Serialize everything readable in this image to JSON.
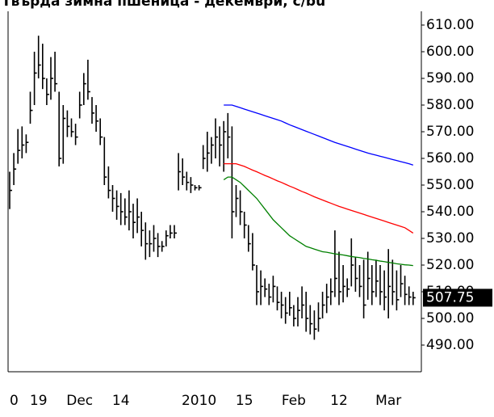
{
  "chart_data": {
    "type": "ohlc",
    "title": "Твърда зимна пшеница - декември, c/bu",
    "categories": [
      "0",
      null,
      null,
      null,
      null,
      null,
      null,
      "19",
      null,
      null,
      null,
      null,
      null,
      null,
      null,
      null,
      null,
      "Dec",
      null,
      null,
      null,
      null,
      null,
      null,
      null,
      null,
      null,
      "14",
      null,
      null,
      null,
      null,
      null,
      null,
      null,
      null,
      null,
      null,
      null,
      null,
      null,
      null,
      null,
      null,
      null,
      null,
      "2010",
      null,
      null,
      null,
      null,
      null,
      null,
      null,
      null,
      null,
      null,
      "15",
      null,
      null,
      null,
      null,
      null,
      null,
      null,
      null,
      null,
      null,
      null,
      "Feb",
      null,
      null,
      null,
      null,
      null,
      null,
      null,
      null,
      null,
      null,
      "12",
      null,
      null,
      null,
      null,
      null,
      null,
      null,
      null,
      null,
      null,
      null,
      "Mar",
      null,
      null,
      null,
      null,
      null,
      null
    ],
    "high": [
      555,
      562,
      571,
      572,
      569,
      585,
      600,
      606,
      603,
      590,
      598,
      600,
      585,
      580,
      578,
      575,
      573,
      585,
      592,
      597,
      583,
      580,
      575,
      568,
      557,
      550,
      548,
      547,
      545,
      548,
      543,
      545,
      540,
      536,
      533,
      535,
      532,
      529,
      533,
      535,
      535,
      562,
      560,
      555,
      553,
      550,
      550,
      565,
      570,
      568,
      575,
      572,
      574,
      577,
      572,
      550,
      548,
      540,
      535,
      532,
      520,
      518,
      515,
      513,
      516,
      512,
      510,
      508,
      510,
      505,
      508,
      512,
      510,
      505,
      503,
      506,
      510,
      513,
      515,
      533,
      525,
      520,
      515,
      530,
      523,
      520,
      522,
      525,
      520,
      522,
      520,
      518,
      526,
      522,
      518,
      520,
      516,
      512,
      510
    ],
    "low": [
      541,
      550,
      558,
      560,
      562,
      573,
      580,
      590,
      586,
      580,
      582,
      585,
      557,
      558,
      568,
      568,
      565,
      575,
      580,
      582,
      573,
      570,
      565,
      550,
      545,
      540,
      537,
      535,
      535,
      533,
      530,
      532,
      527,
      522,
      523,
      525,
      523,
      525,
      527,
      530,
      530,
      548,
      550,
      548,
      547,
      548,
      548,
      556,
      555,
      558,
      560,
      557,
      555,
      560,
      530,
      538,
      535,
      530,
      525,
      518,
      505,
      505,
      508,
      505,
      506,
      503,
      500,
      498,
      501,
      497,
      497,
      500,
      495,
      494,
      492,
      495,
      500,
      502,
      505,
      508,
      505,
      506,
      508,
      512,
      510,
      508,
      500,
      507,
      505,
      508,
      505,
      503,
      500,
      505,
      503,
      508,
      505,
      505,
      505
    ],
    "close": [
      548,
      556,
      563,
      565,
      566,
      578,
      592,
      595,
      590,
      584,
      590,
      588,
      560,
      575,
      572,
      570,
      568,
      580,
      588,
      585,
      577,
      574,
      568,
      553,
      548,
      545,
      542,
      540,
      538,
      540,
      536,
      538,
      533,
      528,
      528,
      530,
      527,
      527,
      531,
      532,
      532,
      555,
      553,
      551,
      550,
      549,
      549,
      560,
      562,
      565,
      568,
      565,
      570,
      568,
      540,
      545,
      540,
      535,
      528,
      520,
      510,
      512,
      511,
      508,
      512,
      506,
      505,
      502,
      504,
      500,
      503,
      505,
      500,
      498,
      496,
      500,
      505,
      508,
      510,
      515,
      510,
      512,
      511,
      520,
      515,
      512,
      505,
      515,
      510,
      514,
      510,
      508,
      512,
      510,
      507,
      513,
      509,
      508,
      507.75
    ],
    "color": "#000000",
    "last_value_label": "507.75",
    "moving_averages": [
      {
        "color": "#0000ff",
        "values": [
          null,
          null,
          null,
          null,
          null,
          null,
          null,
          null,
          null,
          null,
          null,
          null,
          null,
          null,
          null,
          null,
          null,
          null,
          null,
          null,
          null,
          null,
          null,
          null,
          null,
          null,
          null,
          null,
          null,
          null,
          null,
          null,
          null,
          null,
          null,
          null,
          null,
          null,
          null,
          null,
          null,
          null,
          null,
          null,
          null,
          null,
          null,
          null,
          null,
          null,
          null,
          null,
          580,
          580,
          580,
          579.5,
          579,
          578.5,
          578,
          577.5,
          577,
          576.5,
          576,
          575.5,
          575,
          574.5,
          574,
          573.3,
          572.6,
          572,
          571.4,
          570.8,
          570.2,
          569.6,
          569,
          568.4,
          567.8,
          567.2,
          566.6,
          566,
          565.5,
          565,
          564.5,
          564,
          563.5,
          563,
          562.5,
          562,
          561.6,
          561.2,
          560.8,
          560.4,
          560,
          559.6,
          559.2,
          558.8,
          558.4,
          558,
          557.5
        ]
      },
      {
        "color": "#ff0000",
        "values": [
          null,
          null,
          null,
          null,
          null,
          null,
          null,
          null,
          null,
          null,
          null,
          null,
          null,
          null,
          null,
          null,
          null,
          null,
          null,
          null,
          null,
          null,
          null,
          null,
          null,
          null,
          null,
          null,
          null,
          null,
          null,
          null,
          null,
          null,
          null,
          null,
          null,
          null,
          null,
          null,
          null,
          null,
          null,
          null,
          null,
          null,
          null,
          null,
          null,
          null,
          null,
          null,
          558,
          558,
          558,
          558,
          557.5,
          557,
          556.3,
          555.6,
          555,
          554.3,
          553.6,
          553,
          552.3,
          551.6,
          551,
          550.3,
          549.6,
          549,
          548.3,
          547.6,
          547,
          546.3,
          545.6,
          545,
          544.4,
          543.8,
          543.2,
          542.6,
          542,
          541.5,
          541,
          540.5,
          540,
          539.5,
          539,
          538.5,
          538,
          537.5,
          537,
          536.5,
          536,
          535.5,
          535,
          534.5,
          534,
          533,
          532
        ]
      },
      {
        "color": "#008000",
        "values": [
          null,
          null,
          null,
          null,
          null,
          null,
          null,
          null,
          null,
          null,
          null,
          null,
          null,
          null,
          null,
          null,
          null,
          null,
          null,
          null,
          null,
          null,
          null,
          null,
          null,
          null,
          null,
          null,
          null,
          null,
          null,
          null,
          null,
          null,
          null,
          null,
          null,
          null,
          null,
          null,
          null,
          null,
          null,
          null,
          null,
          null,
          null,
          null,
          null,
          null,
          null,
          null,
          552,
          553,
          553,
          552,
          551,
          549.5,
          548,
          546.5,
          545,
          543,
          541,
          539,
          537,
          535.5,
          534,
          532.5,
          531,
          530,
          529,
          528,
          527,
          526.5,
          526,
          525.5,
          525,
          524.8,
          524.5,
          524.2,
          524,
          523.8,
          523.5,
          523.2,
          523,
          522.8,
          522.5,
          522.3,
          522,
          521.8,
          521.5,
          521.3,
          521,
          520.8,
          520.5,
          520.3,
          520.1,
          520,
          519.8
        ]
      }
    ],
    "ylim": [
      480,
      615
    ],
    "yticks": [
      {
        "value": 490,
        "label": "490.00"
      },
      {
        "value": 500,
        "label": "500.00"
      },
      {
        "value": 510,
        "label": "510.00"
      },
      {
        "value": 520,
        "label": "520.00"
      },
      {
        "value": 530,
        "label": "530.00"
      },
      {
        "value": 540,
        "label": "540.00"
      },
      {
        "value": 550,
        "label": "550.00"
      },
      {
        "value": 560,
        "label": "560.00"
      },
      {
        "value": 570,
        "label": "570.00"
      },
      {
        "value": 580,
        "label": "580.00"
      },
      {
        "value": 590,
        "label": "590.00"
      },
      {
        "value": 600,
        "label": "600.00"
      },
      {
        "value": 610,
        "label": "610.00"
      }
    ]
  }
}
